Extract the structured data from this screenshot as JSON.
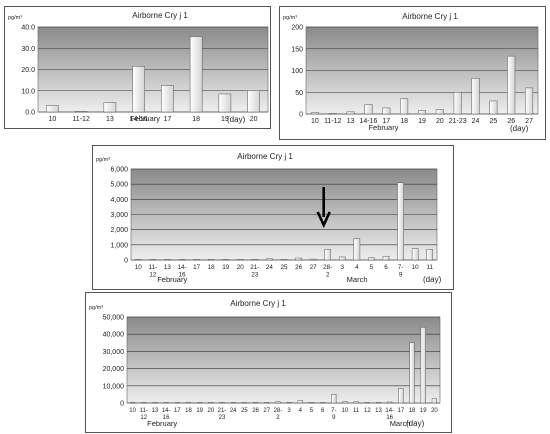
{
  "chart_data": [
    {
      "type": "bar",
      "title": "Airborne Cry j 1",
      "unit_label": "pg/m³",
      "month_labels": [
        "February"
      ],
      "day_label": "(day)",
      "categories": [
        "10",
        "11-12",
        "13",
        "14-16",
        "17",
        "18",
        "19",
        "20"
      ],
      "values": [
        3,
        0,
        4.5,
        21.5,
        12.5,
        35.5,
        8.5,
        10
      ],
      "ylim": [
        0,
        40
      ],
      "yticks": [
        0,
        10,
        20,
        30,
        40
      ],
      "ytick_labels": [
        "0.0",
        "10.0",
        "20.0",
        "30.0",
        "40.0"
      ],
      "grid": true
    },
    {
      "type": "bar",
      "title": "Airborne Cry j 1",
      "unit_label": "pg/m³",
      "month_labels": [
        "February"
      ],
      "day_label": "(day)",
      "categories": [
        "10",
        "11-12",
        "13",
        "14-16",
        "17",
        "18",
        "19",
        "20",
        "21-23",
        "24",
        "25",
        "26",
        "27"
      ],
      "values": [
        3,
        0,
        5,
        22,
        14,
        35,
        8,
        10,
        50,
        82,
        30,
        133,
        60
      ],
      "ylim": [
        0,
        200
      ],
      "yticks": [
        0,
        50,
        100,
        150,
        200
      ],
      "ytick_labels": [
        "0",
        "50",
        "100",
        "150",
        "200"
      ],
      "grid": true
    },
    {
      "type": "bar",
      "title": "Airborne Cry j 1",
      "unit_label": "pg/m³",
      "month_labels": [
        "February",
        "March"
      ],
      "day_label": "(day)",
      "categories": [
        "10",
        "11-12",
        "13",
        "14-16",
        "17",
        "18",
        "19",
        "20",
        "21-23",
        "24",
        "25",
        "26",
        "27",
        "28-2",
        "3",
        "4",
        "5",
        "6",
        "7-9",
        "10",
        "11"
      ],
      "values": [
        3,
        0,
        5,
        22,
        14,
        35,
        8,
        10,
        50,
        82,
        30,
        133,
        60,
        700,
        200,
        1400,
        150,
        250,
        5100,
        750,
        700
      ],
      "ylim": [
        0,
        6000
      ],
      "yticks": [
        0,
        1000,
        2000,
        3000,
        4000,
        5000,
        6000
      ],
      "ytick_labels": [
        "0",
        "1,000",
        "2,000",
        "3,000",
        "4,000",
        "5,000",
        "6,000"
      ],
      "grid": true,
      "annotation": "arrow pointing at 28-2"
    },
    {
      "type": "bar",
      "title": "Airborne Cry j 1",
      "unit_label": "pg/m³",
      "month_labels": [
        "February",
        "March"
      ],
      "day_label": "(day)",
      "categories": [
        "10",
        "11-12",
        "13",
        "14-16",
        "17",
        "18",
        "19",
        "20",
        "21-23",
        "24",
        "25",
        "26",
        "27",
        "28-2",
        "3",
        "4",
        "5",
        "6",
        "7-9",
        "10",
        "11",
        "12",
        "13",
        "14-16",
        "17",
        "18",
        "19",
        "20"
      ],
      "values": [
        3,
        0,
        5,
        22,
        14,
        35,
        8,
        10,
        50,
        82,
        30,
        133,
        60,
        700,
        200,
        1400,
        150,
        250,
        5100,
        750,
        700,
        300,
        400,
        600,
        8500,
        35000,
        44000,
        2500
      ],
      "ylim": [
        0,
        50000
      ],
      "yticks": [
        0,
        10000,
        20000,
        30000,
        40000,
        50000
      ],
      "ytick_labels": [
        "0",
        "10,000",
        "20,000",
        "30,000",
        "40,000",
        "50,000"
      ],
      "grid": true
    }
  ]
}
